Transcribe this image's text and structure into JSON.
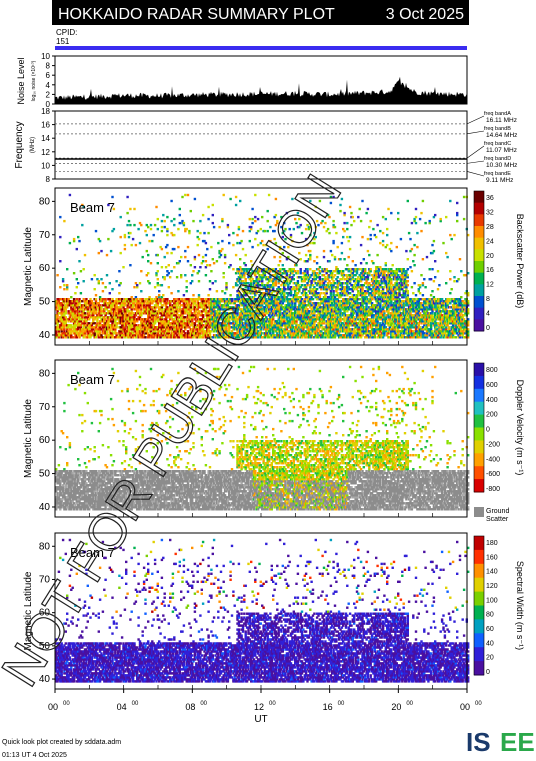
{
  "header": {
    "title": "HOKKAIDO RADAR SUMMARY PLOT",
    "date": "3 Oct 2025"
  },
  "cpid": {
    "label": "CPID:",
    "value": "151",
    "bar_color": "#3a2cf0"
  },
  "noise": {
    "ylabel": "Noise Level",
    "ylabel_sub": "log₁₀ noise (×10¹⁰)",
    "ticks": [
      "10",
      "8",
      "6",
      "4",
      "2",
      "0"
    ]
  },
  "freq": {
    "ylabel": "Frequency",
    "unit": "(MHz)",
    "ticks": [
      "18",
      "16",
      "14",
      "12",
      "10",
      "8"
    ],
    "bands": [
      {
        "label": "freq bandA",
        "value": "16.11 MHz"
      },
      {
        "label": "freq bandB",
        "value": "14.64 MHz"
      },
      {
        "label": "freq bandC",
        "value": "11.07 MHz"
      },
      {
        "label": "freq bandD",
        "value": "10.30 MHz"
      },
      {
        "label": "freq bandE",
        "value": "9.11 MHz"
      }
    ]
  },
  "panels": [
    {
      "beam": "Beam  7",
      "ylabel": "Magnetic Latitude",
      "cbar_label": "Backscatter Power (dB)",
      "cbar_ticks": [
        "36",
        "32",
        "28",
        "24",
        "20",
        "16",
        "12",
        "8",
        "4",
        "0"
      ]
    },
    {
      "beam": "Beam  7",
      "ylabel": "Magnetic Latitude",
      "cbar_label": "Doppler Velocity (m s⁻¹)",
      "cbar_ticks": [
        "800",
        "600",
        "400",
        "200",
        "0",
        "-200",
        "-400",
        "-600",
        "-800"
      ],
      "ground_label": "Ground",
      "scatter_label": "Scatter"
    },
    {
      "beam": "Beam  7",
      "ylabel": "Magnetic Latitude",
      "cbar_label": "Spectral Width (m s⁻¹)",
      "cbar_ticks": [
        "180",
        "160",
        "140",
        "120",
        "100",
        "80",
        "60",
        "40",
        "20",
        "0"
      ]
    }
  ],
  "lat_ticks": [
    "80",
    "70",
    "60",
    "50",
    "40"
  ],
  "xaxis": {
    "ticks": [
      "00",
      "04",
      "08",
      "12",
      "16",
      "20",
      "00"
    ],
    "tick_sup": "00",
    "label": "UT"
  },
  "watermark": "NOT FOR PUBLICATION",
  "footer": {
    "line1": "Quick look plot created by sddata.adm",
    "line2": "01:13 UT  4 Oct 2025"
  },
  "logo": {
    "text": "ISEE",
    "color_dark": "#1a3a6b",
    "color_green": "#2aa84a"
  },
  "chart_data": [
    {
      "type": "line",
      "title": "Noise Level",
      "ylim": [
        0,
        10
      ],
      "x_range_hours": [
        0,
        24
      ],
      "series": [
        {
          "x": [
            0,
            2,
            4,
            6,
            8,
            10,
            12,
            14,
            16,
            18,
            19.5,
            20,
            21,
            22,
            24
          ],
          "y": [
            1.3,
            1.5,
            1.8,
            1.7,
            1.9,
            2.0,
            2.1,
            2.2,
            2.0,
            2.3,
            2.6,
            4.5,
            2.5,
            2.2,
            2.0
          ]
        }
      ]
    },
    {
      "type": "line",
      "title": "Frequency",
      "ylim": [
        8,
        18
      ],
      "series": [
        {
          "x": [
            0,
            24
          ],
          "y": [
            11.1,
            11.1
          ]
        }
      ]
    },
    {
      "type": "heatmap",
      "title": "Backscatter Power (dB)",
      "beam": 7,
      "ylim": [
        37,
        84
      ],
      "zlim": [
        0,
        38
      ],
      "x_range_hours": [
        0,
        24
      ],
      "regions": [
        {
          "x": [
            0,
            8.5
          ],
          "y": [
            40,
            50
          ],
          "value": 28
        },
        {
          "x": [
            8.5,
            12
          ],
          "y": [
            41,
            46
          ],
          "value": 8
        },
        {
          "x": [
            11,
            15.5
          ],
          "y": [
            46,
            58
          ],
          "value": 20
        },
        {
          "x": [
            15.5,
            19
          ],
          "y": [
            45,
            52
          ],
          "value": 10
        },
        {
          "x": [
            19,
            24
          ],
          "y": [
            42,
            58
          ],
          "value": 22
        }
      ]
    },
    {
      "type": "heatmap",
      "title": "Doppler Velocity (m s-1)",
      "beam": 7,
      "ylim": [
        37,
        84
      ],
      "zlim": [
        -900,
        900
      ],
      "x_range_hours": [
        0,
        24
      ],
      "regions": [
        {
          "x": [
            0,
            12
          ],
          "y": [
            40,
            50
          ],
          "value": "ground"
        },
        {
          "x": [
            11,
            17
          ],
          "y": [
            45,
            60
          ],
          "value": -250
        },
        {
          "x": [
            17,
            24
          ],
          "y": [
            42,
            52
          ],
          "value": "ground"
        }
      ]
    },
    {
      "type": "heatmap",
      "title": "Spectral Width (m s-1)",
      "beam": 7,
      "ylim": [
        37,
        84
      ],
      "zlim": [
        0,
        190
      ],
      "x_range_hours": [
        0,
        24
      ],
      "regions": [
        {
          "x": [
            0,
            24
          ],
          "y": [
            40,
            52
          ],
          "value": 0
        },
        {
          "x": [
            10,
            16
          ],
          "y": [
            50,
            60
          ],
          "value": 10
        },
        {
          "x": [
            12,
            13.5
          ],
          "y": [
            68,
            74
          ],
          "value": 170
        }
      ]
    }
  ]
}
